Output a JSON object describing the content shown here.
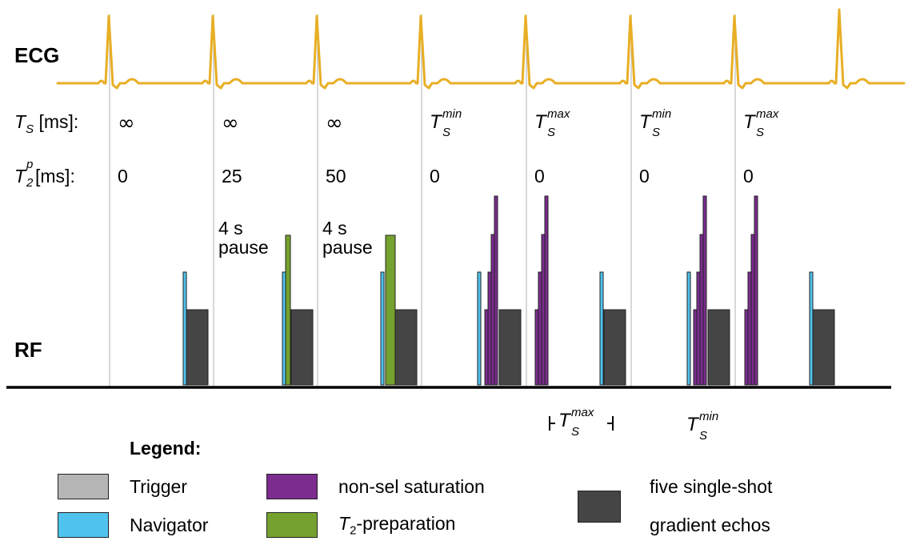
{
  "colors": {
    "ecg": "#E8AE25",
    "trigger": "#B5B5B5",
    "navigator": "#4FC3EE",
    "saturation": "#7B2C8E",
    "t2prep": "#75A22E",
    "echos": "#454545",
    "guide": "#BDBDBD",
    "baseline": "#000000"
  },
  "rows": {
    "ecg_label": "ECG",
    "rf_label": "RF",
    "ts_label": {
      "sym": "T",
      "sub": "S",
      "unit": " [ms]:"
    },
    "t2p_label": {
      "sym": "T",
      "sub": "2",
      "sup": "p",
      "unit": " [ms]:"
    }
  },
  "beats": [
    {
      "ts": {
        "text": "∞"
      },
      "t2p": "0"
    },
    {
      "ts": {
        "text": "∞"
      },
      "t2p": "25",
      "pause": [
        "4 s",
        "pause"
      ]
    },
    {
      "ts": {
        "text": "∞"
      },
      "t2p": "50",
      "pause": [
        "4 s",
        "pause"
      ]
    },
    {
      "ts": {
        "sym": "T",
        "sub": "S",
        "sup": "min"
      },
      "t2p": "0"
    },
    {
      "ts": {
        "sym": "T",
        "sub": "S",
        "sup": "max"
      },
      "t2p": "0"
    },
    {
      "ts": {
        "sym": "T",
        "sub": "S",
        "sup": "min"
      },
      "t2p": "0"
    },
    {
      "ts": {
        "sym": "T",
        "sub": "S",
        "sup": "max"
      },
      "t2p": "0"
    }
  ],
  "annotations": {
    "ts_max": {
      "sym": "T",
      "sub": "S",
      "sup": "max"
    },
    "ts_min": {
      "sym": "T",
      "sub": "S",
      "sup": "min"
    }
  },
  "legend": {
    "title": "Legend:",
    "items": {
      "trigger": "Trigger",
      "navigator": "Navigator",
      "saturation": "non-sel saturation",
      "t2prep": {
        "sym": "T",
        "sub": "2",
        "rest": "-preparation"
      },
      "echos": [
        "five single-shot",
        "gradient echos"
      ]
    }
  }
}
